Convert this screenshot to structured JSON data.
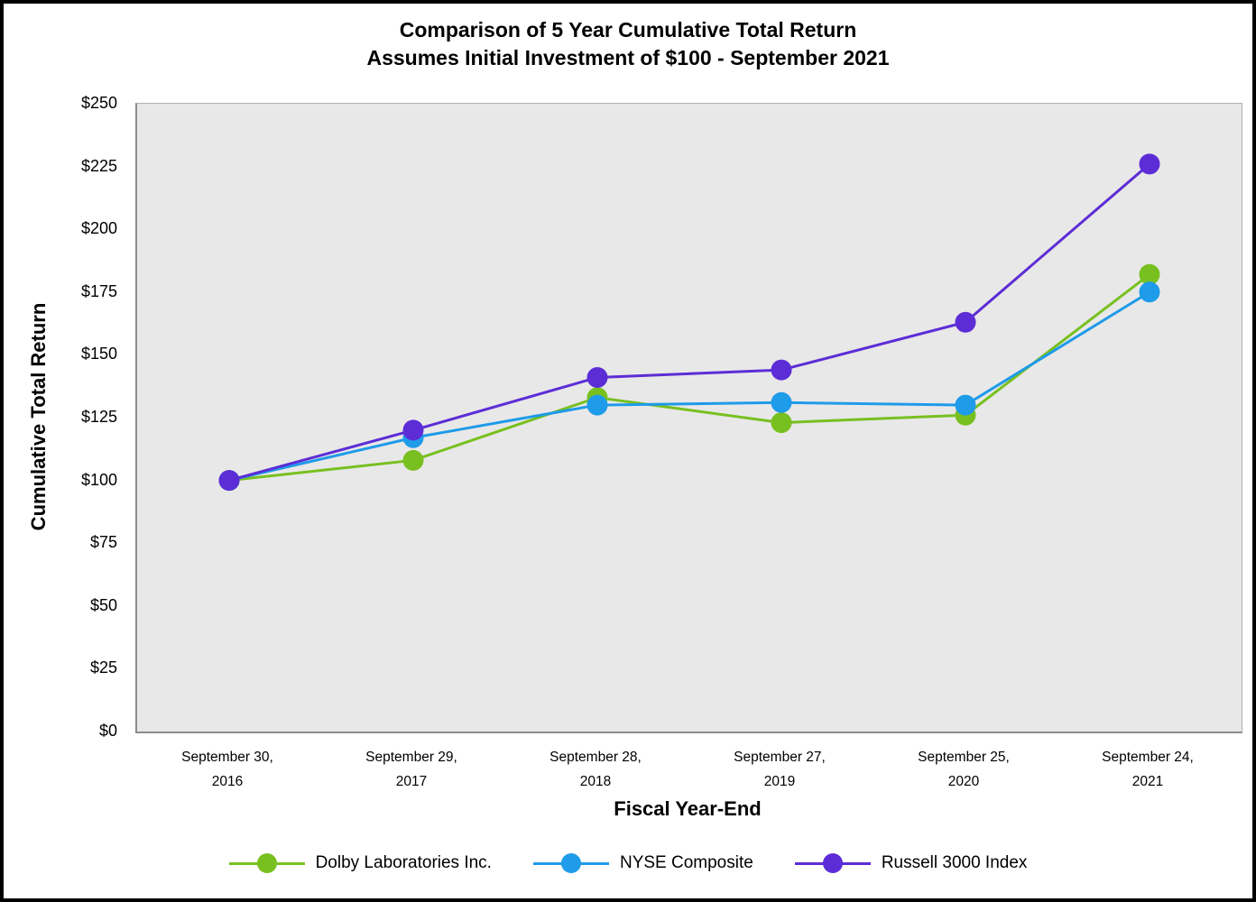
{
  "chart": {
    "title_line1": "Comparison of 5 Year Cumulative Total Return",
    "title_line2": "Assumes Initial Investment of $100 - September 2021",
    "y_axis_title": "Cumulative Total Return",
    "x_axis_title": "Fiscal Year-End",
    "y_tick_labels": [
      "$250",
      "$225",
      "$200",
      "$175",
      "$150",
      "$125",
      "$100",
      "$75",
      "$50",
      "$25",
      "$0"
    ],
    "plot_background": "#e9e8e8",
    "frame_border_color": "#000000"
  },
  "chart_data": {
    "type": "line",
    "title": "Comparison of 5 Year Cumulative Total Return",
    "subtitle": "Assumes Initial Investment of $100 - September 2021",
    "xlabel": "Fiscal Year-End",
    "ylabel": "Cumulative Total Return",
    "ylim": [
      0,
      250
    ],
    "y_tick_step": 25,
    "grid": false,
    "legend_position": "bottom",
    "categories": [
      "September 30, 2016",
      "September 29, 2017",
      "September 28, 2018",
      "September 27, 2019",
      "September 25, 2020",
      "September 24, 2021"
    ],
    "series": [
      {
        "name": "Dolby Laboratories Inc.",
        "color": "#78c020",
        "values": [
          100,
          108,
          133,
          123,
          126,
          182
        ]
      },
      {
        "name": "NYSE Composite",
        "color": "#1e9be9",
        "values": [
          100,
          117,
          130,
          131,
          130,
          175
        ]
      },
      {
        "name": "Russell 3000 Index",
        "color": "#5c2dd6",
        "values": [
          100,
          120,
          141,
          144,
          163,
          226
        ]
      }
    ]
  }
}
